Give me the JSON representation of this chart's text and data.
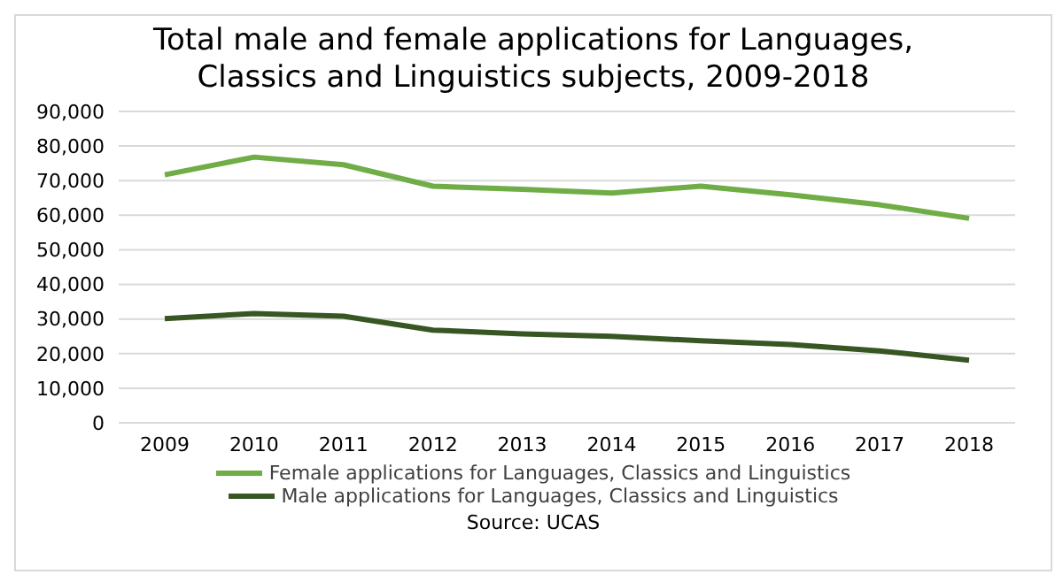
{
  "chart_data": {
    "type": "line",
    "title": "Total male and female applications for Languages, Classics and Linguistics subjects, 2009-2018",
    "categories": [
      "2009",
      "2010",
      "2011",
      "2012",
      "2013",
      "2014",
      "2015",
      "2016",
      "2017",
      "2018"
    ],
    "series": [
      {
        "name": "Female applications for Languages, Classics and Linguistics",
        "color": "#70ad47",
        "values": [
          71700,
          76800,
          74600,
          68400,
          67500,
          66400,
          68400,
          65900,
          63000,
          59100
        ]
      },
      {
        "name": "Male applications for Languages, Classics and Linguistics",
        "color": "#375623",
        "values": [
          30100,
          31600,
          30800,
          26800,
          25700,
          25000,
          23700,
          22600,
          20800,
          18100
        ]
      }
    ],
    "ylim": [
      0,
      90000
    ],
    "yticks": [
      0,
      {
        "value": 10000,
        "label": "10,000"
      },
      {
        "value": 20000,
        "label": "20,000"
      },
      {
        "value": 30000,
        "label": "30,000"
      },
      {
        "value": 40000,
        "label": "40,000"
      },
      {
        "value": 50000,
        "label": "50,000"
      },
      {
        "value": 60000,
        "label": "60,000"
      },
      {
        "value": 70000,
        "label": "70,000"
      },
      {
        "value": 80000,
        "label": "80,000"
      },
      {
        "value": 90000,
        "label": "90,000"
      }
    ],
    "grid": "y",
    "legend": "bottom",
    "marker": "none",
    "annotations": [
      "Source: UCAS"
    ]
  }
}
